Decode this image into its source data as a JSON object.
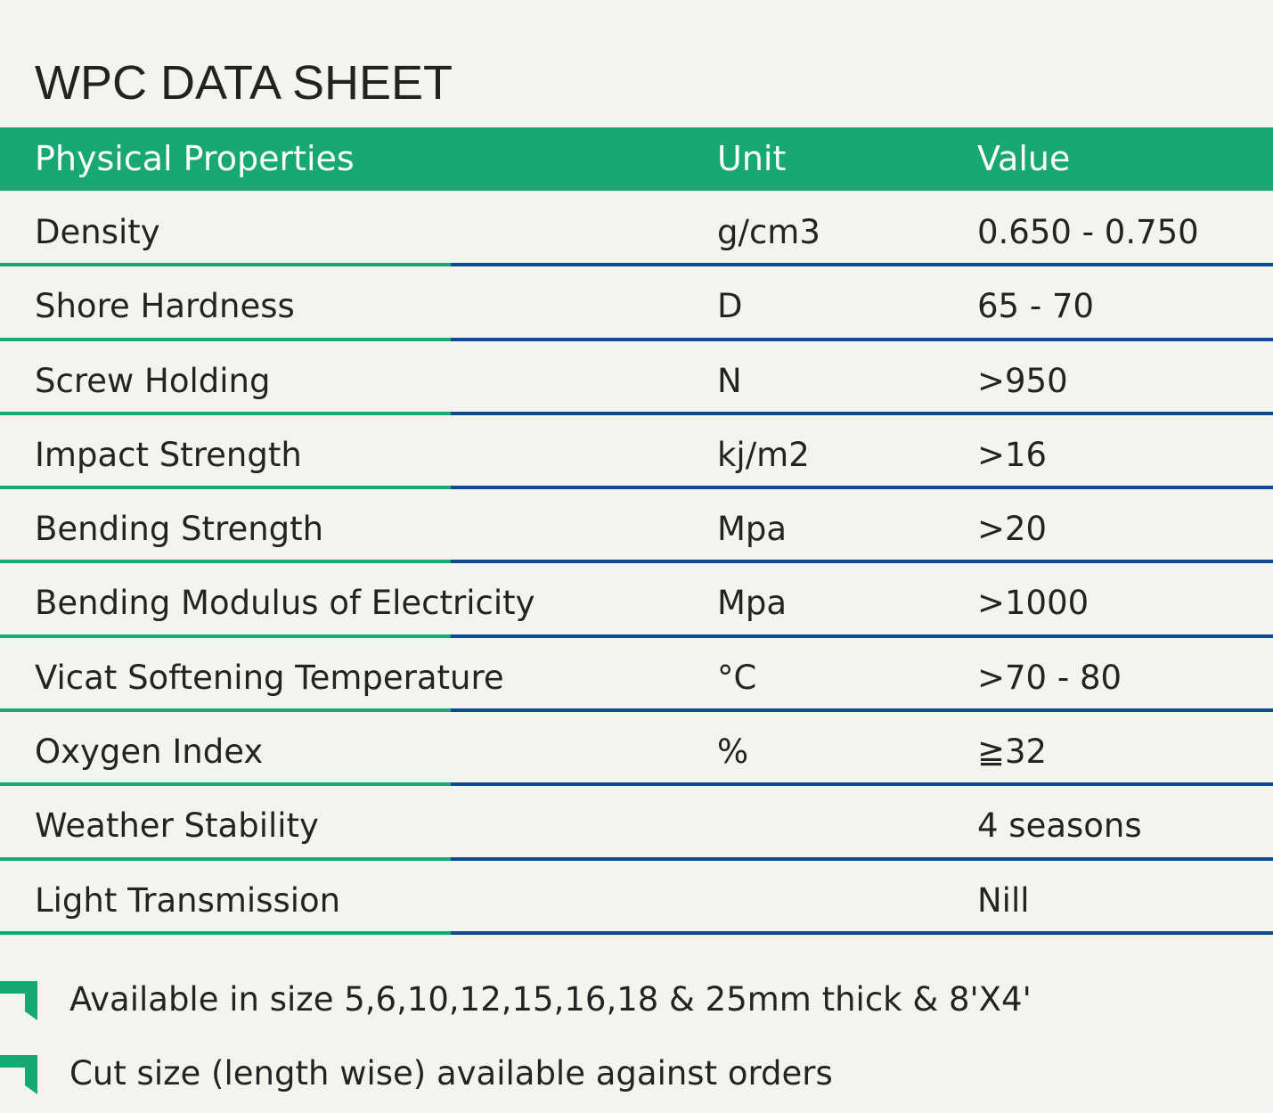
{
  "title": "WPC DATA SHEET",
  "colors": {
    "header_bg": "#17a874",
    "rule_green": "#17a874",
    "rule_blue": "#0d4a8f",
    "page_bg": "#f4f4ef",
    "text": "#222222"
  },
  "table": {
    "headers": [
      "Physical Properties",
      "Unit",
      "Value"
    ],
    "rows": [
      {
        "property": "Density",
        "unit": "g/cm3",
        "value": "0.650 - 0.750"
      },
      {
        "property": "Shore Hardness",
        "unit": "D",
        "value": "65 - 70"
      },
      {
        "property": "Screw Holding",
        "unit": "N",
        "value": ">950"
      },
      {
        "property": "Impact Strength",
        "unit": "kj/m2",
        "value": ">16"
      },
      {
        "property": "Bending Strength",
        "unit": "Mpa",
        "value": ">20"
      },
      {
        "property": "Bending Modulus of Electricity",
        "unit": "Mpa",
        "value": ">1000"
      },
      {
        "property": "Vicat Softening Temperature",
        "unit": "°C",
        "value": ">70 - 80"
      },
      {
        "property": "Oxygen Index",
        "unit": "%",
        "value": "≧32"
      },
      {
        "property": "Weather Stability",
        "unit": "",
        "value": "4 seasons"
      },
      {
        "property": "Light Transmission",
        "unit": "",
        "value": "Nill"
      }
    ]
  },
  "notes": [
    {
      "icon": "corner-arrow-icon",
      "text": "Available in size 5,6,10,12,15,16,18 & 25mm thick & 8'X4'"
    },
    {
      "icon": "corner-arrow-icon",
      "text": "Cut size (length wise) available against orders"
    }
  ]
}
